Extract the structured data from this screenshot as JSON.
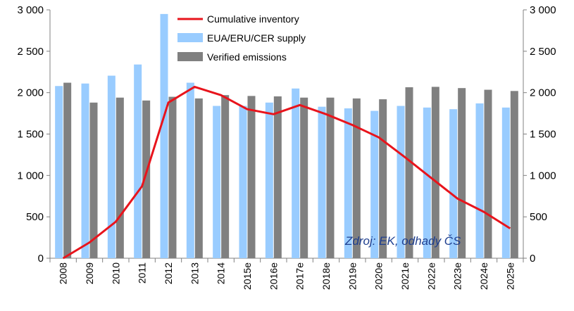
{
  "chart_data": {
    "type": "bar",
    "categories": [
      "2008",
      "2009",
      "2010",
      "2011",
      "2012",
      "2013",
      "2014",
      "2015e",
      "2016e",
      "2017e",
      "2018e",
      "2019e",
      "2020e",
      "2021e",
      "2022e",
      "2023e",
      "2024e",
      "2025e"
    ],
    "series": [
      {
        "name": "EUA/ERU/CER supply",
        "type": "bar",
        "color": "#99ccff",
        "values": [
          2080,
          2110,
          2205,
          2340,
          2950,
          2120,
          1840,
          1840,
          1880,
          2050,
          1830,
          1810,
          1780,
          1840,
          1820,
          1800,
          1870,
          1820
        ]
      },
      {
        "name": "Verified emissions",
        "type": "bar",
        "color": "#808080",
        "values": [
          2120,
          1880,
          1940,
          1905,
          1950,
          1930,
          1970,
          1960,
          1955,
          1940,
          1940,
          1930,
          1920,
          2065,
          2070,
          2055,
          2035,
          2020
        ]
      },
      {
        "name": "Cumulative inventory",
        "type": "line",
        "color": "#e8141c",
        "values": [
          0,
          190,
          440,
          870,
          1880,
          2070,
          1970,
          1800,
          1740,
          1850,
          1740,
          1610,
          1460,
          1220,
          970,
          720,
          560,
          360
        ]
      }
    ],
    "y_left": {
      "min": 0,
      "max": 3000,
      "step": 500,
      "tick_labels": [
        "0",
        "500",
        "1 000",
        "1 500",
        "2 000",
        "2 500",
        "3 000"
      ]
    },
    "y_right": {
      "min": 0,
      "max": 3000,
      "step": 500,
      "tick_labels": [
        "0",
        "500",
        "1 000",
        "1 500",
        "2 000",
        "2 500",
        "3 000"
      ]
    },
    "legend_position": "top-center",
    "grid": false,
    "annotation": "Zdroj: EK, odhady ČS"
  }
}
